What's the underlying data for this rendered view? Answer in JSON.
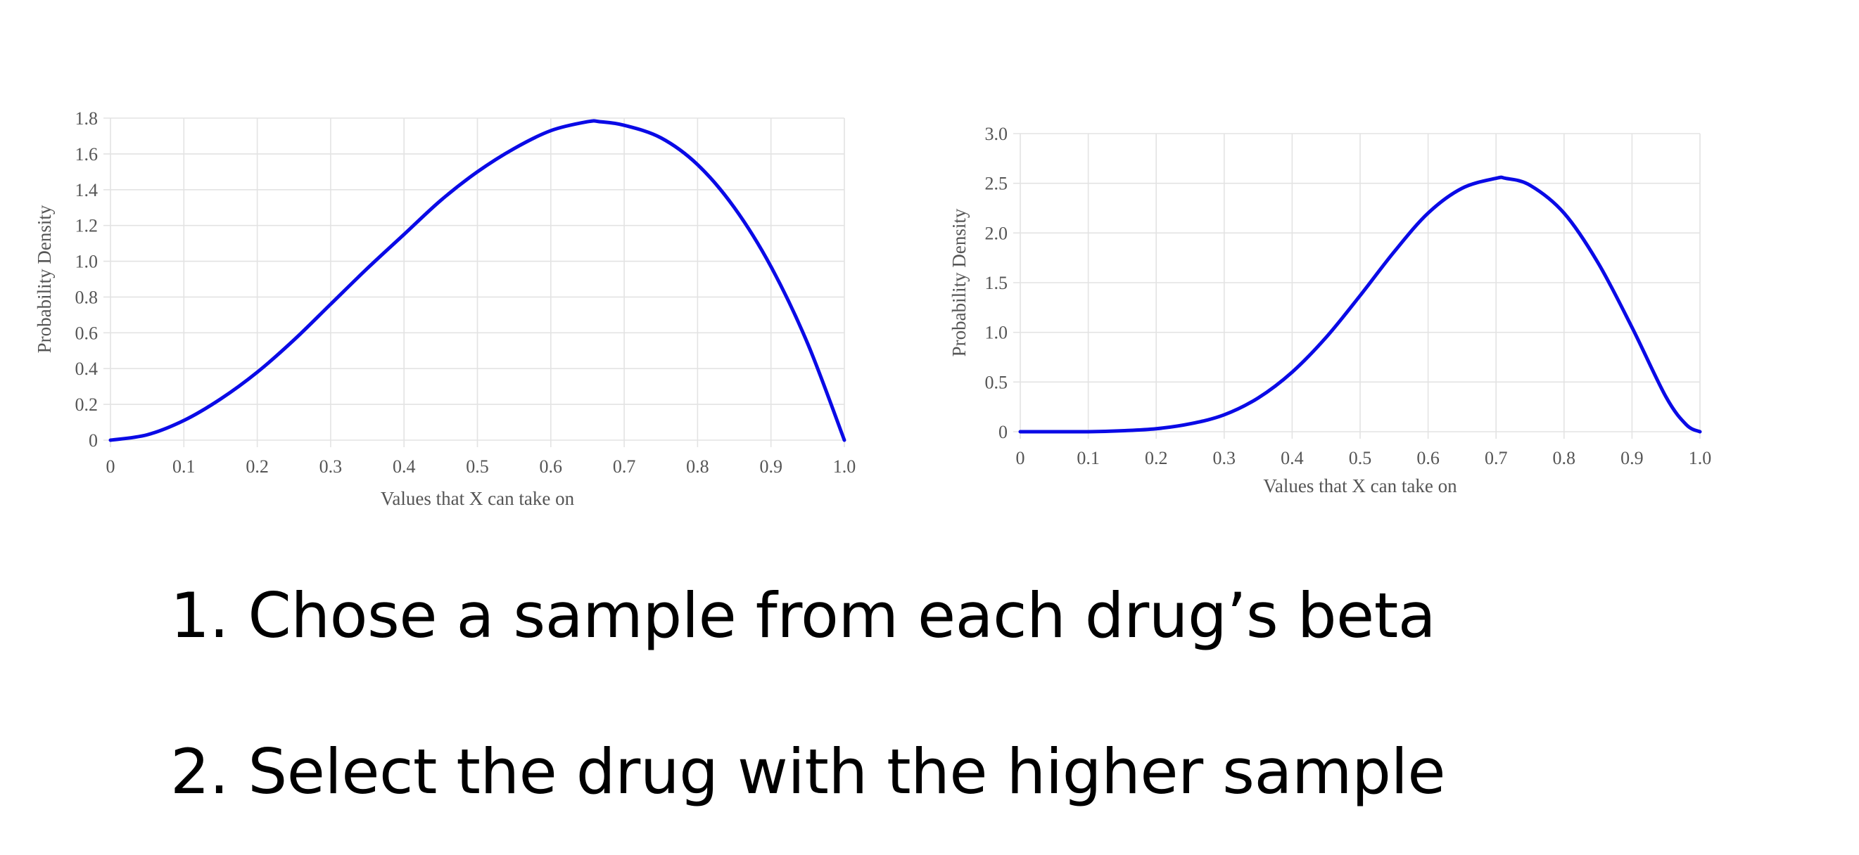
{
  "colors": {
    "curve": "#0a0ae6",
    "grid": "#e3e3e3",
    "text": "#555555",
    "steps_text": "#000000"
  },
  "chart_data": [
    {
      "type": "line",
      "xlabel": "Values that X can take on",
      "ylabel": "Probability Density",
      "xlim": [
        0,
        1.0
      ],
      "ylim": [
        0,
        1.8
      ],
      "xticks": [
        "0",
        "0.1",
        "0.2",
        "0.3",
        "0.4",
        "0.5",
        "0.6",
        "0.7",
        "0.8",
        "0.9",
        "1.0"
      ],
      "yticks": [
        "0",
        "0.2",
        "0.4",
        "0.6",
        "0.8",
        "1.0",
        "1.2",
        "1.4",
        "1.6",
        "1.8"
      ],
      "grid": true,
      "series": [
        {
          "color": "#0a0ae6",
          "x": [
            0,
            0.05,
            0.1,
            0.15,
            0.2,
            0.25,
            0.3,
            0.35,
            0.4,
            0.45,
            0.5,
            0.55,
            0.6,
            0.65,
            0.667,
            0.7,
            0.75,
            0.8,
            0.85,
            0.9,
            0.95,
            1.0
          ],
          "y": [
            0,
            0.03,
            0.11,
            0.23,
            0.38,
            0.56,
            0.76,
            0.96,
            1.15,
            1.34,
            1.5,
            1.63,
            1.73,
            1.78,
            1.78,
            1.76,
            1.69,
            1.54,
            1.3,
            0.97,
            0.54,
            0
          ]
        }
      ]
    },
    {
      "type": "line",
      "xlabel": "Values that X can take on",
      "ylabel": "Probability Density",
      "xlim": [
        0,
        1.0
      ],
      "ylim": [
        0,
        3.0
      ],
      "xticks": [
        "0",
        "0.1",
        "0.2",
        "0.3",
        "0.4",
        "0.5",
        "0.6",
        "0.7",
        "0.8",
        "0.9",
        "1.0"
      ],
      "yticks": [
        "0",
        "0.5",
        "1.0",
        "1.5",
        "2.0",
        "2.5",
        "3.0"
      ],
      "grid": true,
      "series": [
        {
          "color": "#0a0ae6",
          "x": [
            0,
            0.05,
            0.1,
            0.15,
            0.2,
            0.25,
            0.3,
            0.35,
            0.4,
            0.45,
            0.5,
            0.55,
            0.6,
            0.65,
            0.7,
            0.714,
            0.75,
            0.8,
            0.85,
            0.9,
            0.95,
            0.98,
            1.0
          ],
          "y": [
            0,
            0,
            0,
            0.01,
            0.03,
            0.08,
            0.17,
            0.34,
            0.6,
            0.95,
            1.37,
            1.81,
            2.2,
            2.45,
            2.55,
            2.55,
            2.48,
            2.2,
            1.7,
            1.05,
            0.35,
            0.07,
            0
          ]
        }
      ]
    }
  ],
  "steps": [
    "1. Chose a sample from each drug’s beta",
    "2. Select the drug with the higher sample"
  ]
}
